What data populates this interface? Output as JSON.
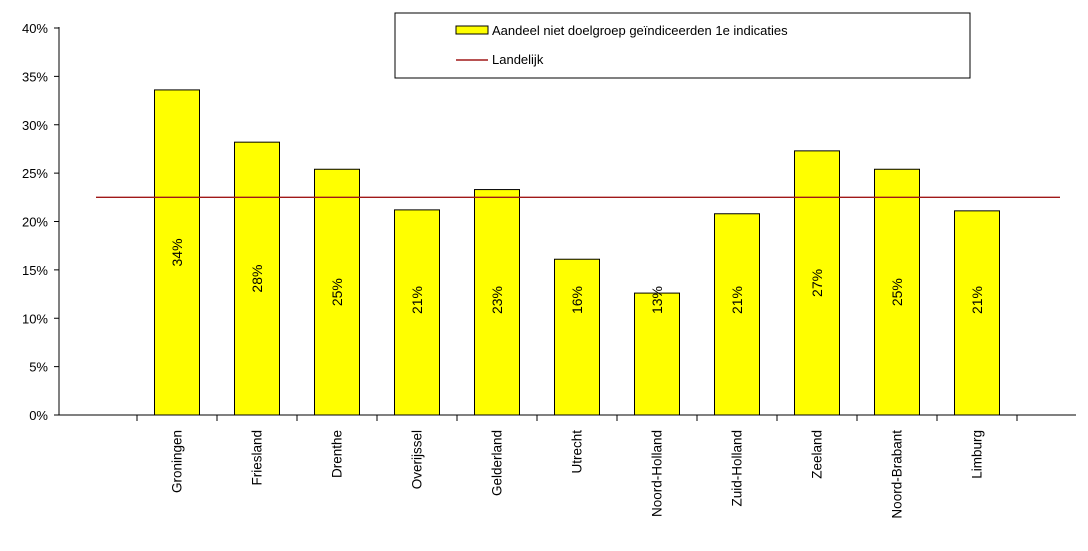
{
  "chart_data": {
    "type": "bar",
    "categories": [
      "Groningen",
      "Friesland",
      "Drenthe",
      "Overijssel",
      "Gelderland",
      "Utrecht",
      "Noord-Holland",
      "Zuid-Holland",
      "Zeeland",
      "Noord-Brabant",
      "Limburg"
    ],
    "values": [
      33.6,
      28.2,
      25.4,
      21.2,
      23.3,
      16.1,
      12.6,
      20.8,
      27.3,
      25.4,
      21.1
    ],
    "data_labels": [
      "34%",
      "28%",
      "25%",
      "21%",
      "23%",
      "16%",
      "13%",
      "21%",
      "27%",
      "25%",
      "21%"
    ],
    "y_ticks": [
      0,
      5,
      10,
      15,
      20,
      25,
      30,
      35,
      40
    ],
    "y_tick_labels": [
      "0%",
      "5%",
      "10%",
      "15%",
      "20%",
      "25%",
      "30%",
      "35%",
      "40%"
    ],
    "ylim": [
      0,
      40
    ],
    "reference_line": {
      "name": "Landelijk",
      "value": 22.5,
      "color": "#a01818"
    },
    "series": [
      {
        "name": "Aandeel niet doelgroep geïndiceerden 1e indicaties",
        "color": "#ffff00"
      }
    ],
    "legend": {
      "placement": "top-right",
      "entries": [
        "Aandeel niet doelgroep geïndiceerden 1e indicaties",
        "Landelijk"
      ]
    },
    "grid": false
  }
}
